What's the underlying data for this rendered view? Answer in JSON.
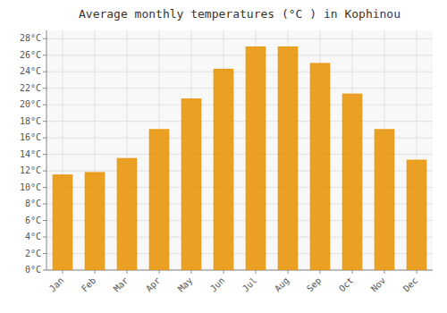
{
  "chart_data": {
    "type": "bar",
    "title": "Average monthly temperatures (°C ) in Kophinou",
    "categories": [
      "Jan",
      "Feb",
      "Mar",
      "Apr",
      "May",
      "Jun",
      "Jul",
      "Aug",
      "Sep",
      "Oct",
      "Nov",
      "Dec"
    ],
    "values": [
      11.5,
      11.8,
      13.5,
      17.0,
      20.7,
      24.3,
      27.0,
      27.0,
      25.0,
      21.3,
      17.0,
      13.3
    ],
    "color": "#E8960A",
    "ylim": [
      0,
      29
    ],
    "yticks": [
      {
        "value": 0,
        "label": "0°C"
      },
      {
        "value": 2,
        "label": "2°C"
      },
      {
        "value": 4,
        "label": "4°C"
      },
      {
        "value": 6,
        "label": "6°C"
      },
      {
        "value": 8,
        "label": "8°C"
      },
      {
        "value": 10,
        "label": "10°C"
      },
      {
        "value": 12,
        "label": "12°C"
      },
      {
        "value": 14,
        "label": "14°C"
      },
      {
        "value": 16,
        "label": "16°C"
      },
      {
        "value": 18,
        "label": "18°C"
      },
      {
        "value": 20,
        "label": "20°C"
      },
      {
        "value": 22,
        "label": "22°C"
      },
      {
        "value": 24,
        "label": "24°C"
      },
      {
        "value": 26,
        "label": "26°C"
      },
      {
        "value": 28,
        "label": "28°C"
      }
    ],
    "grid": true
  }
}
